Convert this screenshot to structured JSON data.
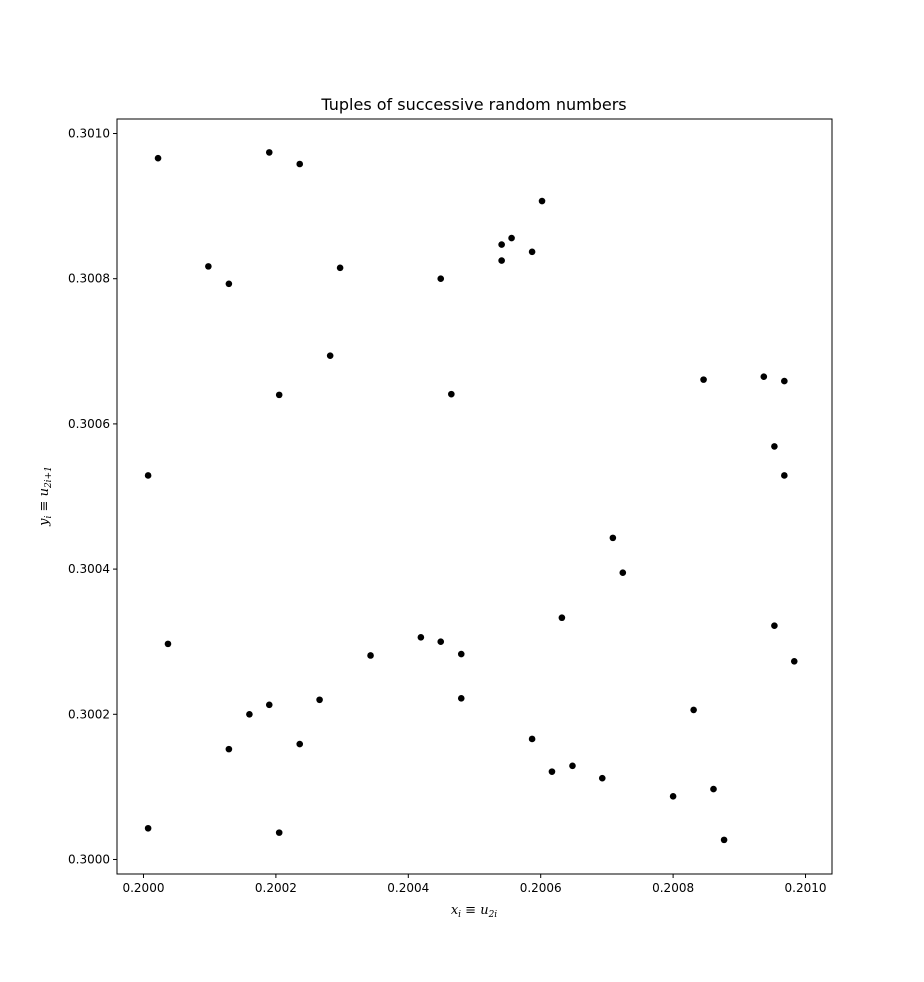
{
  "chart_data": {
    "type": "scatter",
    "title": "Tuples of successive random numbers",
    "xlabel": {
      "main": "x",
      "main_sub": "i",
      "eq": " ≡ u",
      "eq_sub": "2i"
    },
    "ylabel": {
      "main": "y",
      "main_sub": "i",
      "eq": " ≡ u",
      "eq_sub": "2i+1"
    },
    "xlim": [
      0.19996,
      0.20104
    ],
    "ylim": [
      0.29998,
      0.30102
    ],
    "xticks": [
      0.2,
      0.2002,
      0.2004,
      0.2006,
      0.2008,
      0.201
    ],
    "yticks": [
      0.3,
      0.3002,
      0.3004,
      0.3006,
      0.3008,
      0.301
    ],
    "xtick_labels": [
      "0.2000",
      "0.2002",
      "0.2004",
      "0.2006",
      "0.2008",
      "0.2010"
    ],
    "ytick_labels": [
      "0.3000",
      "0.3002",
      "0.3004",
      "0.3006",
      "0.3008",
      "0.3010"
    ],
    "grid": false,
    "marker_color": "#000000",
    "points": [
      [
        0.200007,
        0.300043
      ],
      [
        0.200007,
        0.300529
      ],
      [
        0.200022,
        0.300966
      ],
      [
        0.200037,
        0.300297
      ],
      [
        0.200098,
        0.300817
      ],
      [
        0.200129,
        0.300152
      ],
      [
        0.200129,
        0.300793
      ],
      [
        0.20016,
        0.3002
      ],
      [
        0.20019,
        0.300213
      ],
      [
        0.20019,
        0.300974
      ],
      [
        0.200205,
        0.300037
      ],
      [
        0.200205,
        0.30064
      ],
      [
        0.200236,
        0.300159
      ],
      [
        0.200236,
        0.300958
      ],
      [
        0.200266,
        0.30022
      ],
      [
        0.200282,
        0.300694
      ],
      [
        0.200297,
        0.300815
      ],
      [
        0.200343,
        0.300281
      ],
      [
        0.200419,
        0.300306
      ],
      [
        0.200449,
        0.3003
      ],
      [
        0.200449,
        0.3008
      ],
      [
        0.200465,
        0.300641
      ],
      [
        0.20048,
        0.300222
      ],
      [
        0.20048,
        0.300283
      ],
      [
        0.200541,
        0.300825
      ],
      [
        0.200541,
        0.300847
      ],
      [
        0.200556,
        0.300856
      ],
      [
        0.200587,
        0.300166
      ],
      [
        0.200587,
        0.300837
      ],
      [
        0.200602,
        0.300907
      ],
      [
        0.200617,
        0.300121
      ],
      [
        0.200632,
        0.300333
      ],
      [
        0.200648,
        0.300129
      ],
      [
        0.200693,
        0.300112
      ],
      [
        0.200709,
        0.300443
      ],
      [
        0.200724,
        0.300395
      ],
      [
        0.2008,
        0.300087
      ],
      [
        0.200831,
        0.300206
      ],
      [
        0.200846,
        0.300661
      ],
      [
        0.200861,
        0.300097
      ],
      [
        0.200877,
        0.300027
      ],
      [
        0.200937,
        0.300665
      ],
      [
        0.200953,
        0.300322
      ],
      [
        0.200953,
        0.300569
      ],
      [
        0.200968,
        0.300529
      ],
      [
        0.200968,
        0.300659
      ],
      [
        0.200983,
        0.300273
      ]
    ]
  }
}
